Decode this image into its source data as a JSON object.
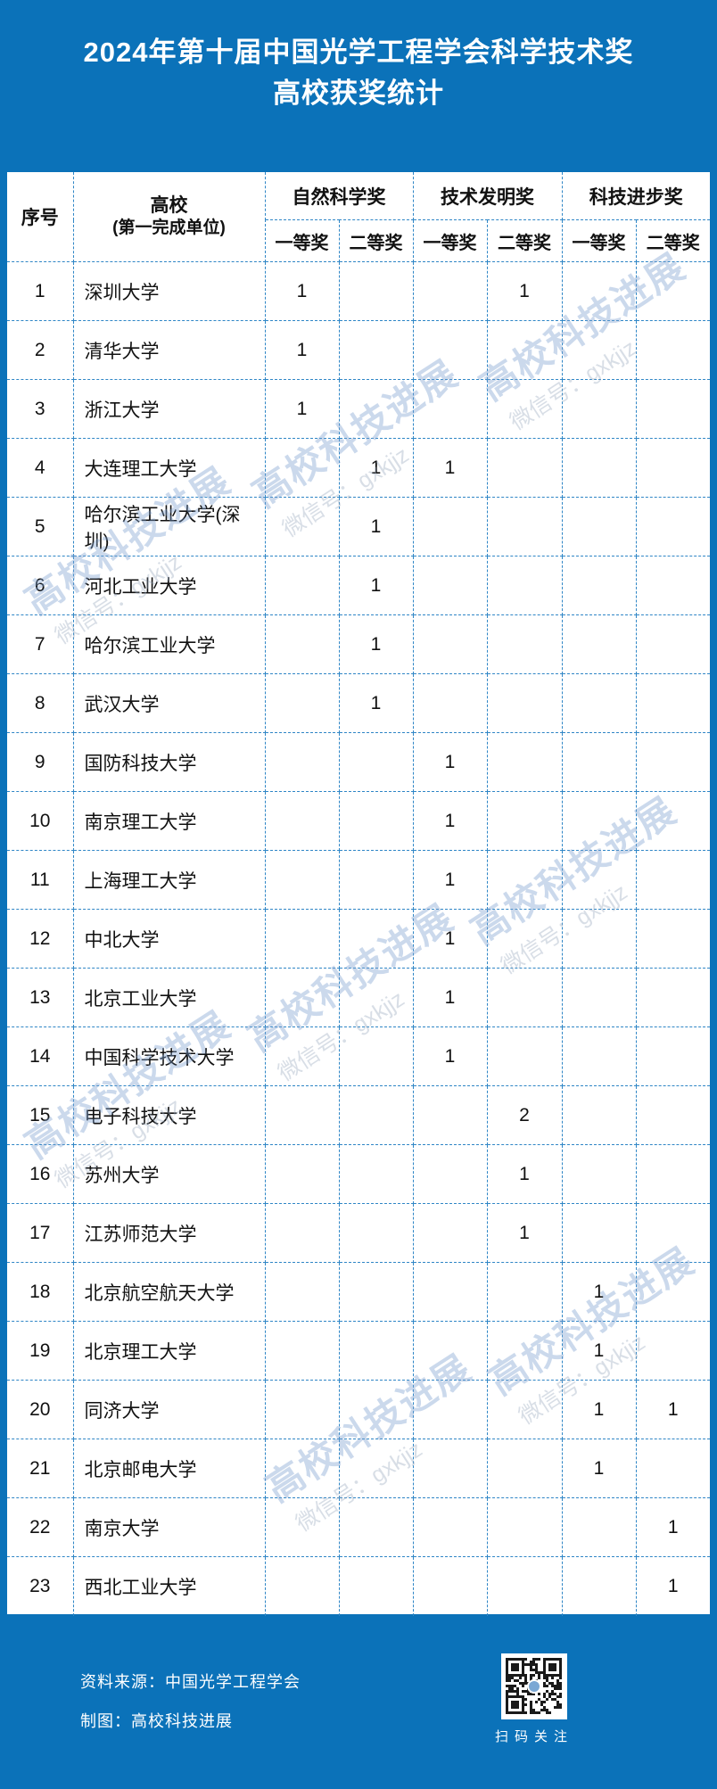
{
  "title": {
    "line1": "2024年第十届中国光学工程学会科学技术奖",
    "line2": "高校获奖统计"
  },
  "table": {
    "header": {
      "index": "序号",
      "university_line1": "高校",
      "university_line2": "(第一完成单位)",
      "groups": [
        "自然科学奖",
        "技术发明奖",
        "科技进步奖"
      ],
      "subs": [
        "一等奖",
        "二等奖"
      ]
    },
    "rows": [
      {
        "no": "1",
        "university": "深圳大学",
        "values": [
          "1",
          "",
          "",
          "1",
          "",
          ""
        ]
      },
      {
        "no": "2",
        "university": "清华大学",
        "values": [
          "1",
          "",
          "",
          "",
          "",
          ""
        ]
      },
      {
        "no": "3",
        "university": "浙江大学",
        "values": [
          "1",
          "",
          "",
          "",
          "",
          ""
        ]
      },
      {
        "no": "4",
        "university": "大连理工大学",
        "values": [
          "",
          "1",
          "1",
          "",
          "",
          ""
        ]
      },
      {
        "no": "5",
        "university": "哈尔滨工业大学(深圳)",
        "values": [
          "",
          "1",
          "",
          "",
          "",
          ""
        ]
      },
      {
        "no": "6",
        "university": "河北工业大学",
        "values": [
          "",
          "1",
          "",
          "",
          "",
          ""
        ]
      },
      {
        "no": "7",
        "university": "哈尔滨工业大学",
        "values": [
          "",
          "1",
          "",
          "",
          "",
          ""
        ]
      },
      {
        "no": "8",
        "university": "武汉大学",
        "values": [
          "",
          "1",
          "",
          "",
          "",
          ""
        ]
      },
      {
        "no": "9",
        "university": "国防科技大学",
        "values": [
          "",
          "",
          "1",
          "",
          "",
          ""
        ]
      },
      {
        "no": "10",
        "university": "南京理工大学",
        "values": [
          "",
          "",
          "1",
          "",
          "",
          ""
        ]
      },
      {
        "no": "11",
        "university": "上海理工大学",
        "values": [
          "",
          "",
          "1",
          "",
          "",
          ""
        ]
      },
      {
        "no": "12",
        "university": "中北大学",
        "values": [
          "",
          "",
          "1",
          "",
          "",
          ""
        ]
      },
      {
        "no": "13",
        "university": "北京工业大学",
        "values": [
          "",
          "",
          "1",
          "",
          "",
          ""
        ]
      },
      {
        "no": "14",
        "university": "中国科学技术大学",
        "values": [
          "",
          "",
          "1",
          "",
          "",
          ""
        ]
      },
      {
        "no": "15",
        "university": "电子科技大学",
        "values": [
          "",
          "",
          "",
          "2",
          "",
          ""
        ]
      },
      {
        "no": "16",
        "university": "苏州大学",
        "values": [
          "",
          "",
          "",
          "1",
          "",
          ""
        ]
      },
      {
        "no": "17",
        "university": "江苏师范大学",
        "values": [
          "",
          "",
          "",
          "1",
          "",
          ""
        ]
      },
      {
        "no": "18",
        "university": "北京航空航天大学",
        "values": [
          "",
          "",
          "",
          "",
          "1",
          ""
        ]
      },
      {
        "no": "19",
        "university": "北京理工大学",
        "values": [
          "",
          "",
          "",
          "",
          "1",
          ""
        ]
      },
      {
        "no": "20",
        "university": "同济大学",
        "values": [
          "",
          "",
          "",
          "",
          "1",
          "1"
        ]
      },
      {
        "no": "21",
        "university": "北京邮电大学",
        "values": [
          "",
          "",
          "",
          "",
          "1",
          ""
        ]
      },
      {
        "no": "22",
        "university": "南京大学",
        "values": [
          "",
          "",
          "",
          "",
          "",
          "1"
        ]
      },
      {
        "no": "23",
        "university": "西北工业大学",
        "values": [
          "",
          "",
          "",
          "",
          "",
          "1"
        ]
      }
    ]
  },
  "watermark": {
    "line1": "高校科技进展",
    "line2": "微信号：gxkjjz"
  },
  "footer": {
    "source": "资料来源：中国光学工程学会",
    "credit": "制图：高校科技进展",
    "qr_icon": "qr-code",
    "qr_caption": "扫码关注"
  },
  "colors": {
    "background_blue": "#0B72B9",
    "grid_dashed_blue": "#2F86C6",
    "title_text": "#FFFFFF",
    "table_text": "#111111",
    "watermark_blue": "#7DA0D0"
  },
  "chart_data": {
    "type": "table",
    "title": "2024年第十届中国光学工程学会科学技术奖 高校获奖统计",
    "columns": [
      "序号",
      "高校(第一完成单位)",
      "自然科学奖一等奖",
      "自然科学奖二等奖",
      "技术发明奖一等奖",
      "技术发明奖二等奖",
      "科技进步奖一等奖",
      "科技进步奖二等奖"
    ],
    "rows": [
      [
        1,
        "深圳大学",
        1,
        null,
        null,
        1,
        null,
        null
      ],
      [
        2,
        "清华大学",
        1,
        null,
        null,
        null,
        null,
        null
      ],
      [
        3,
        "浙江大学",
        1,
        null,
        null,
        null,
        null,
        null
      ],
      [
        4,
        "大连理工大学",
        null,
        1,
        1,
        null,
        null,
        null
      ],
      [
        5,
        "哈尔滨工业大学(深圳)",
        null,
        1,
        null,
        null,
        null,
        null
      ],
      [
        6,
        "河北工业大学",
        null,
        1,
        null,
        null,
        null,
        null
      ],
      [
        7,
        "哈尔滨工业大学",
        null,
        1,
        null,
        null,
        null,
        null
      ],
      [
        8,
        "武汉大学",
        null,
        1,
        null,
        null,
        null,
        null
      ],
      [
        9,
        "国防科技大学",
        null,
        null,
        1,
        null,
        null,
        null
      ],
      [
        10,
        "南京理工大学",
        null,
        null,
        1,
        null,
        null,
        null
      ],
      [
        11,
        "上海理工大学",
        null,
        null,
        1,
        null,
        null,
        null
      ],
      [
        12,
        "中北大学",
        null,
        null,
        1,
        null,
        null,
        null
      ],
      [
        13,
        "北京工业大学",
        null,
        null,
        1,
        null,
        null,
        null
      ],
      [
        14,
        "中国科学技术大学",
        null,
        null,
        1,
        null,
        null,
        null
      ],
      [
        15,
        "电子科技大学",
        null,
        null,
        null,
        2,
        null,
        null
      ],
      [
        16,
        "苏州大学",
        null,
        null,
        null,
        1,
        null,
        null
      ],
      [
        17,
        "江苏师范大学",
        null,
        null,
        null,
        1,
        null,
        null
      ],
      [
        18,
        "北京航空航天大学",
        null,
        null,
        null,
        null,
        1,
        null
      ],
      [
        19,
        "北京理工大学",
        null,
        null,
        null,
        null,
        1,
        null
      ],
      [
        20,
        "同济大学",
        null,
        null,
        null,
        null,
        1,
        1
      ],
      [
        21,
        "北京邮电大学",
        null,
        null,
        null,
        null,
        1,
        null
      ],
      [
        22,
        "南京大学",
        null,
        null,
        null,
        null,
        null,
        1
      ],
      [
        23,
        "西北工业大学",
        null,
        null,
        null,
        null,
        null,
        1
      ]
    ]
  }
}
